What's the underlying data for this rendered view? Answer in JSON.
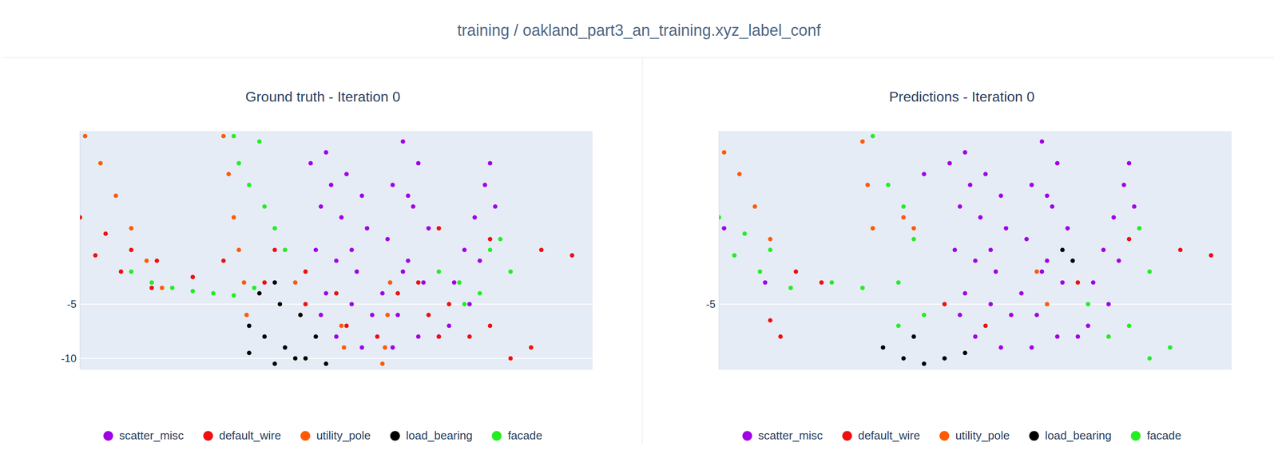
{
  "header": {
    "title": "training / oakland_part3_an_training.xyz_label_conf"
  },
  "chart_data": [
    {
      "type": "scatter",
      "title": "Ground truth - Iteration 0",
      "xlim": [
        0,
        100
      ],
      "ylim": [
        -11,
        11
      ],
      "yticks": [
        -10,
        -5
      ],
      "grid": true,
      "tick_labels": "y",
      "legend": "bottom",
      "marker": "circle",
      "series": [
        {
          "name": "scatter_misc",
          "color": "#a000e6",
          "x": [
            45,
            48,
            52,
            55,
            47,
            51,
            56,
            46,
            50,
            54,
            48,
            53,
            57,
            50,
            55,
            49,
            53,
            47,
            63,
            66,
            61,
            65,
            68,
            60,
            64,
            67,
            59,
            62,
            66,
            61,
            64,
            63,
            80,
            79,
            77,
            75,
            78,
            73,
            76,
            72,
            70,
            81
          ],
          "values": [
            8,
            9,
            7,
            5,
            4,
            3,
            2,
            0,
            -1,
            -2,
            -4,
            -5,
            -6,
            -8,
            -9,
            6,
            0,
            -6,
            10,
            8,
            6,
            4,
            2,
            1,
            -1,
            -3,
            -4,
            -6,
            -8,
            -9,
            5,
            -2,
            8,
            6,
            3,
            0,
            -1,
            -3,
            -5,
            -7,
            -8,
            4
          ]
        },
        {
          "name": "default_wire",
          "color": "#ee1111",
          "x": [
            0,
            5,
            10,
            15,
            22,
            3,
            8,
            14,
            28,
            36,
            44,
            52,
            58,
            38,
            44,
            50,
            66,
            72,
            80,
            88,
            68,
            76,
            84,
            70,
            80,
            90,
            96,
            62,
            70
          ],
          "values": [
            3,
            1.5,
            0,
            -1,
            -2.5,
            -0.5,
            -2,
            -3.5,
            -1,
            -3,
            -5,
            -7,
            -8,
            0,
            -2,
            -4,
            -3,
            -5,
            -7,
            -9,
            -6,
            -8,
            -10,
            2,
            1,
            0,
            -0.5,
            -4,
            -8
          ]
        },
        {
          "name": "utility_pole",
          "color": "#ff5a00",
          "x": [
            1,
            4,
            7,
            10,
            13,
            16,
            28,
            29,
            30,
            31,
            32,
            32.5,
            60.5,
            60,
            59.5,
            59,
            51,
            51.5,
            42,
            43
          ],
          "values": [
            10.5,
            8,
            5,
            2,
            -1,
            -3.5,
            10.5,
            7,
            3,
            0,
            -3,
            -6,
            -3,
            -6,
            -9,
            -10.5,
            -7,
            -9,
            -3,
            -6
          ]
        },
        {
          "name": "load_bearing",
          "color": "#000000",
          "x": [
            33,
            36,
            40,
            44,
            48,
            38,
            33,
            35,
            39,
            43,
            38,
            46,
            42
          ],
          "values": [
            -7,
            -8,
            -9,
            -10,
            -10.5,
            -10.5,
            -9.5,
            -4,
            -5,
            -6,
            -3,
            -8,
            -10
          ]
        },
        {
          "name": "facade",
          "color": "#22ee22",
          "x": [
            10,
            14,
            18,
            22,
            26,
            30,
            34,
            30,
            31,
            33,
            36,
            38,
            35,
            40,
            70,
            74,
            78,
            80,
            82,
            84,
            75
          ],
          "values": [
            -2,
            -3,
            -3.5,
            -3.8,
            -4,
            -4.2,
            -3.5,
            10.5,
            8,
            6,
            4,
            2,
            10,
            0,
            -2,
            -3,
            -4,
            0,
            1,
            -2,
            -5
          ]
        }
      ]
    },
    {
      "type": "scatter",
      "title": "Predictions - Iteration 0",
      "xlim": [
        0,
        100
      ],
      "ylim": [
        -11,
        11
      ],
      "yticks": [
        -5
      ],
      "grid": true,
      "tick_labels": "y",
      "legend": "bottom",
      "marker": "circle",
      "series": [
        {
          "name": "scatter_misc",
          "color": "#a000e6",
          "x": [
            45,
            48,
            52,
            55,
            47,
            51,
            56,
            46,
            50,
            54,
            48,
            53,
            57,
            50,
            55,
            49,
            53,
            47,
            63,
            66,
            61,
            65,
            68,
            60,
            64,
            67,
            59,
            62,
            66,
            61,
            64,
            63,
            80,
            79,
            77,
            75,
            78,
            73,
            76,
            72,
            70,
            81,
            1,
            9,
            40
          ],
          "values": [
            8,
            9,
            7,
            5,
            4,
            3,
            2,
            0,
            -1,
            -2,
            -4,
            -5,
            -6,
            -8,
            -9,
            6,
            0,
            -6,
            10,
            8,
            6,
            4,
            2,
            1,
            -1,
            -3,
            -4,
            -6,
            -8,
            -9,
            5,
            -2,
            8,
            6,
            3,
            0,
            -1,
            -3,
            -5,
            -7,
            -8,
            4,
            2,
            -3,
            7
          ]
        },
        {
          "name": "default_wire",
          "color": "#ee1111",
          "x": [
            15,
            20,
            44,
            52,
            70,
            80,
            90,
            96,
            10,
            12
          ],
          "values": [
            -2,
            -3,
            -5,
            -7,
            -3,
            1,
            0,
            -0.5,
            -6.5,
            -8
          ]
        },
        {
          "name": "utility_pole",
          "color": "#ff5a00",
          "x": [
            1,
            4,
            7,
            10,
            28,
            29,
            30,
            36,
            38,
            62,
            64
          ],
          "values": [
            9,
            7,
            4,
            1,
            10,
            6,
            2,
            3,
            2,
            -2,
            -5
          ]
        },
        {
          "name": "load_bearing",
          "color": "#000000",
          "x": [
            32,
            36,
            40,
            44,
            48,
            38,
            67,
            69
          ],
          "values": [
            -9,
            -10,
            -10.5,
            -10,
            -9.5,
            -8,
            0,
            -1
          ]
        },
        {
          "name": "facade",
          "color": "#22ee22",
          "x": [
            0,
            5,
            10,
            3,
            8,
            14,
            22,
            28,
            35,
            30,
            33,
            36,
            38,
            35,
            40,
            72,
            80,
            88,
            76,
            84,
            82,
            84
          ],
          "values": [
            3,
            1.5,
            0,
            -0.5,
            -2,
            -3.5,
            -3,
            -3.5,
            -3,
            10.5,
            6,
            4,
            1,
            -7,
            -6,
            -5,
            -7,
            -9,
            -8,
            -10,
            2,
            -2
          ]
        }
      ]
    }
  ]
}
